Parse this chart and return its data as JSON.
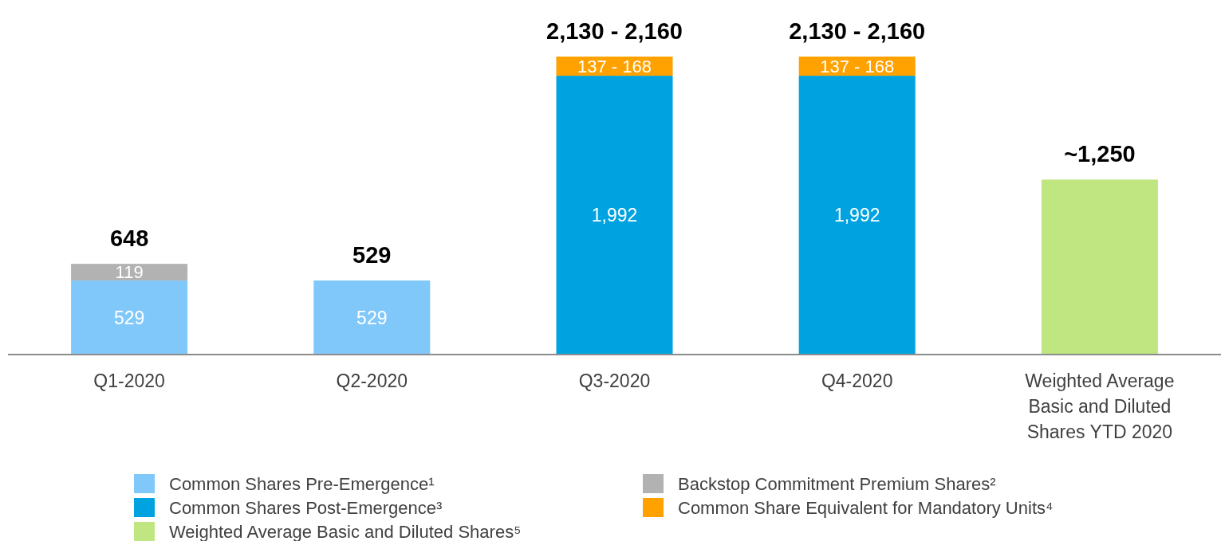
{
  "chart_data": {
    "type": "bar",
    "stacked": true,
    "categories": [
      "Q1-2020",
      "Q2-2020",
      "Q3-2020",
      "Q4-2020",
      "Weighted Average Basic and Diluted Shares YTD 2020"
    ],
    "series": [
      {
        "name": "Common Shares Pre-Emergence¹",
        "color": "#80c8fa",
        "values": [
          529,
          529,
          null,
          null,
          null
        ],
        "value_labels": [
          "529",
          "529",
          null,
          null,
          null
        ]
      },
      {
        "name": "Backstop Commitment Premium Shares²",
        "color": "#b2b2b2",
        "values": [
          119,
          null,
          null,
          null,
          null
        ],
        "value_labels": [
          "119",
          null,
          null,
          null,
          null
        ]
      },
      {
        "name": "Common Shares Post-Emergence³",
        "color": "#00a3e0",
        "values": [
          null,
          null,
          1992,
          1992,
          null
        ],
        "value_labels": [
          null,
          null,
          "1,992",
          "1,992",
          null
        ]
      },
      {
        "name": "Common Share Equivalent for Mandatory Units⁴",
        "color": "#ffa200",
        "values": [
          null,
          null,
          137,
          137,
          null
        ],
        "value_labels": [
          null,
          null,
          "137 - 168",
          "137 - 168",
          null
        ]
      },
      {
        "name": "Weighted Average Basic and Diluted Shares⁵",
        "color": "#bfe680",
        "values": [
          null,
          null,
          null,
          null,
          1250
        ]
      }
    ],
    "totals": [
      "648",
      "529",
      "2,130 - 2,160",
      "2,130 - 2,160",
      "~1,250"
    ],
    "legend": "bottom"
  }
}
